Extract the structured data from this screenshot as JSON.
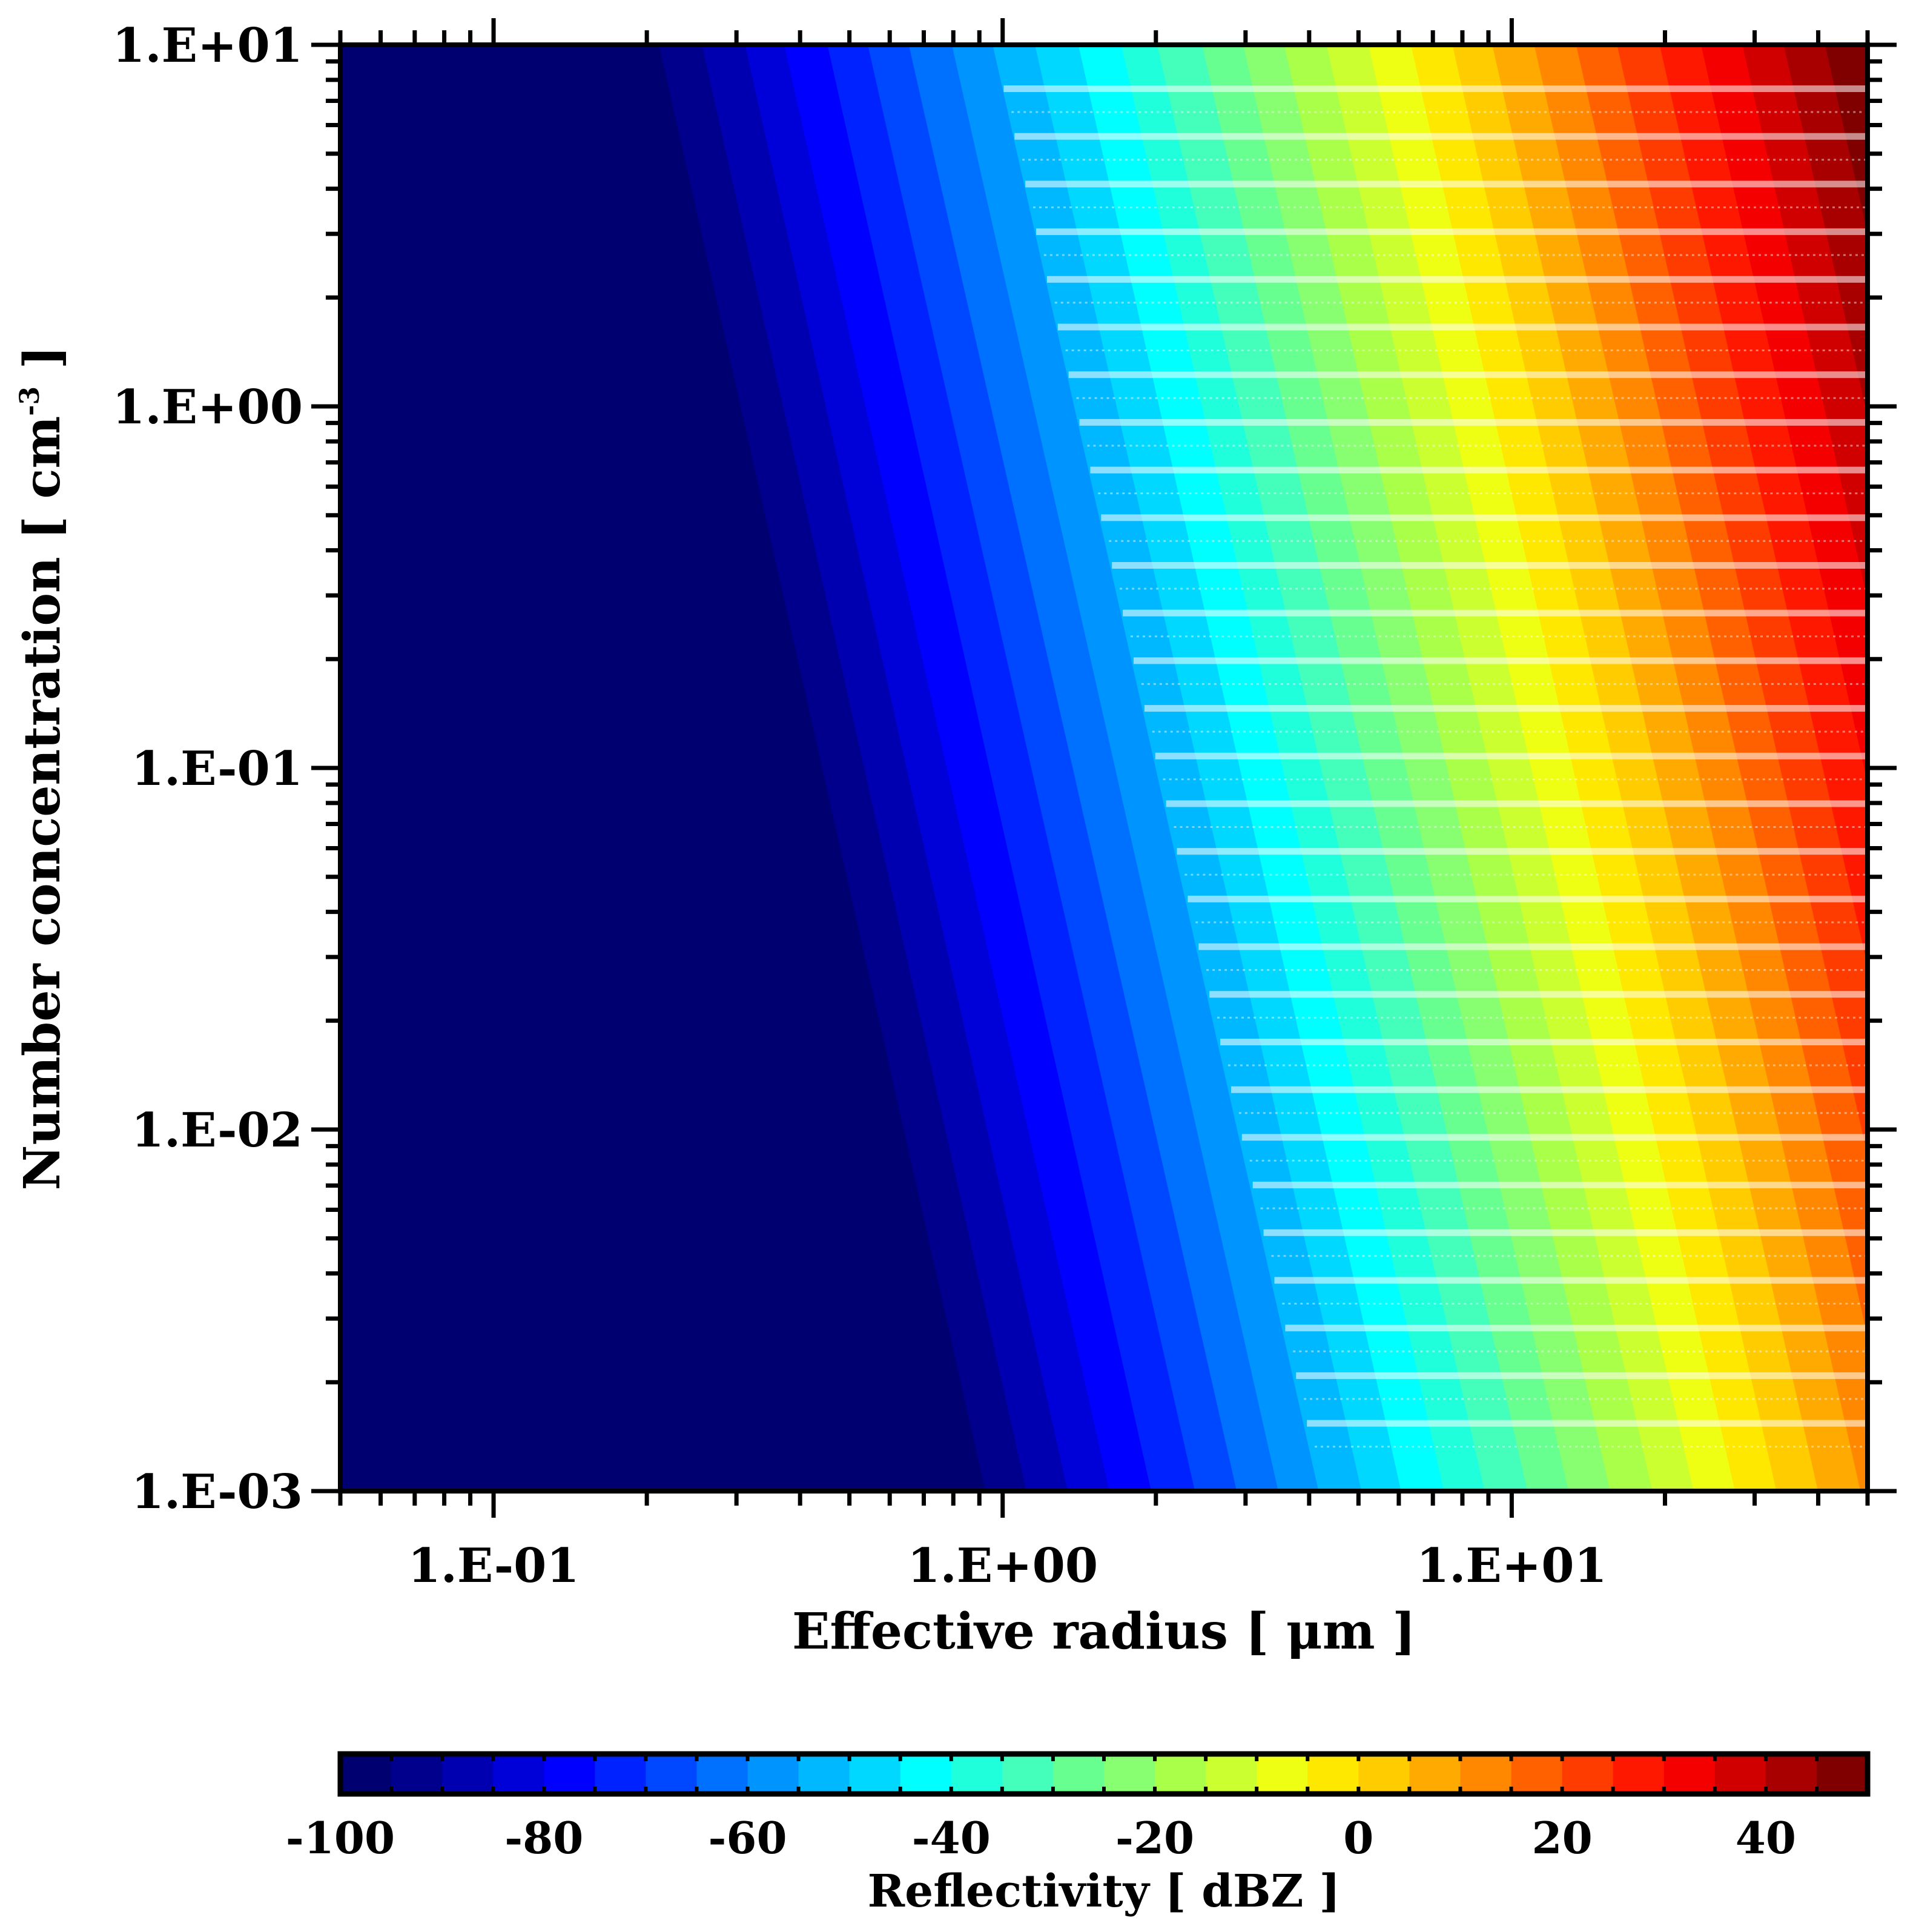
{
  "chart_data": {
    "type": "heatmap",
    "subtype": "filled-contour",
    "title": "",
    "xlabel": "Effective radius [ μm ]",
    "ylabel": "Number concentration [ cm⁻³ ]",
    "xscale": "log",
    "yscale": "log",
    "xlim": [
      0.05,
      50
    ],
    "ylim": [
      0.001,
      10
    ],
    "x_major_ticks": [
      {
        "value": 0.1,
        "label": "1.E-01"
      },
      {
        "value": 1,
        "label": "1.E+00"
      },
      {
        "value": 10,
        "label": "1.E+01"
      }
    ],
    "y_major_ticks": [
      {
        "value": 10,
        "label": "1.E+01"
      },
      {
        "value": 1,
        "label": "1.E+00"
      },
      {
        "value": 0.1,
        "label": "1.E-01"
      },
      {
        "value": 0.01,
        "label": "1.E-02"
      },
      {
        "value": 0.001,
        "label": "1.E-03"
      }
    ],
    "z_quantity": "Reflectivity",
    "z_units": "dBZ",
    "z_relation": "Z increases ~60 dB per decade of effective radius and ~10 dB per decade of number concentration",
    "z_range_visible": [
      -100,
      50
    ],
    "z_at_corners": {
      "top_right_r50_N10": 47,
      "bottom_right_r50_N0.001": 7,
      "top_left_r0.05_N10": -100,
      "bottom_left_r0.05_N0.001": -100
    },
    "contour_levels": [
      -100,
      -95,
      -90,
      -85,
      -80,
      -75,
      -70,
      -65,
      -60,
      -55,
      -50,
      -45,
      -40,
      -35,
      -30,
      -25,
      -20,
      -15,
      -10,
      -5,
      0,
      5,
      10,
      15,
      20,
      25,
      30,
      35,
      40,
      45,
      50
    ],
    "level_boundaries_top_edge_r_um": {
      "-95": 0.21,
      "-90": 0.255,
      "-85": 0.31,
      "-80": 0.37,
      "-75": 0.45,
      "-70": 0.54,
      "-65": 0.65,
      "-60": 0.79,
      "-55": 0.95,
      "-50": 1.15,
      "-45": 1.4,
      "-40": 1.7,
      "-35": 2.0,
      "-30": 2.45,
      "-25": 2.95,
      "-20": 3.55,
      "-15": 4.3,
      "-10": 5.2,
      "-5": 6.3,
      "0": 7.6,
      "5": 9.1,
      "10": 11.0,
      "15": 13.3,
      "20": 16.0,
      "25": 19.4,
      "30": 23.4,
      "35": 28.2,
      "40": 34.0,
      "45": 41.0
    },
    "level_boundaries_bottom_edge_r_um": {
      "-95": 0.93,
      "-90": 1.12,
      "-85": 1.35,
      "-80": 1.63,
      "-75": 1.97,
      "-70": 2.4,
      "-65": 2.9,
      "-60": 3.5,
      "-55": 4.2,
      "-50": 5.1,
      "-45": 6.1,
      "-40": 7.4,
      "-35": 8.9,
      "-30": 10.8,
      "-25": 13.0,
      "-20": 15.7,
      "-15": 19.0,
      "-10": 22.9,
      "-5": 27.6,
      "0": 33.3,
      "5": 40.2
    },
    "overlay": {
      "description": "Semi-transparent white horizontal streaks across the region with Z > about -55 dBZ",
      "count": 29,
      "start_level_dbz": -55
    },
    "colorbar": {
      "orientation": "horizontal",
      "position": "bottom",
      "min": -100,
      "max": 50,
      "step": 5,
      "tick_values": [
        -100,
        -80,
        -60,
        -40,
        -20,
        0,
        20,
        40
      ],
      "tick_labels": [
        "-100",
        "-80",
        "-60",
        "-40",
        "-20",
        "0",
        "20",
        "40"
      ],
      "label": "Reflectivity [ dBZ ]",
      "colors": [
        "#000070",
        "#00008c",
        "#0000b0",
        "#0000d8",
        "#0000ff",
        "#0022ff",
        "#0048ff",
        "#0070ff",
        "#0094ff",
        "#00b8ff",
        "#00d8ff",
        "#00ffff",
        "#20ffdc",
        "#44ffbc",
        "#66ff90",
        "#88ff70",
        "#aaff48",
        "#ccff30",
        "#eeff14",
        "#ffe800",
        "#ffcc00",
        "#ffaa00",
        "#ff8800",
        "#ff6000",
        "#ff3c00",
        "#ff1800",
        "#f40000",
        "#d00000",
        "#a80000",
        "#800000"
      ]
    },
    "grid": false,
    "legend": "none"
  },
  "labels": {
    "x_title": "Effective radius [ μm ]",
    "y_title_main": "Number concentration [ cm",
    "y_title_sup": "-3",
    "y_title_end": " ]",
    "colorbar_title": "Reflectivity [ dBZ ]"
  }
}
